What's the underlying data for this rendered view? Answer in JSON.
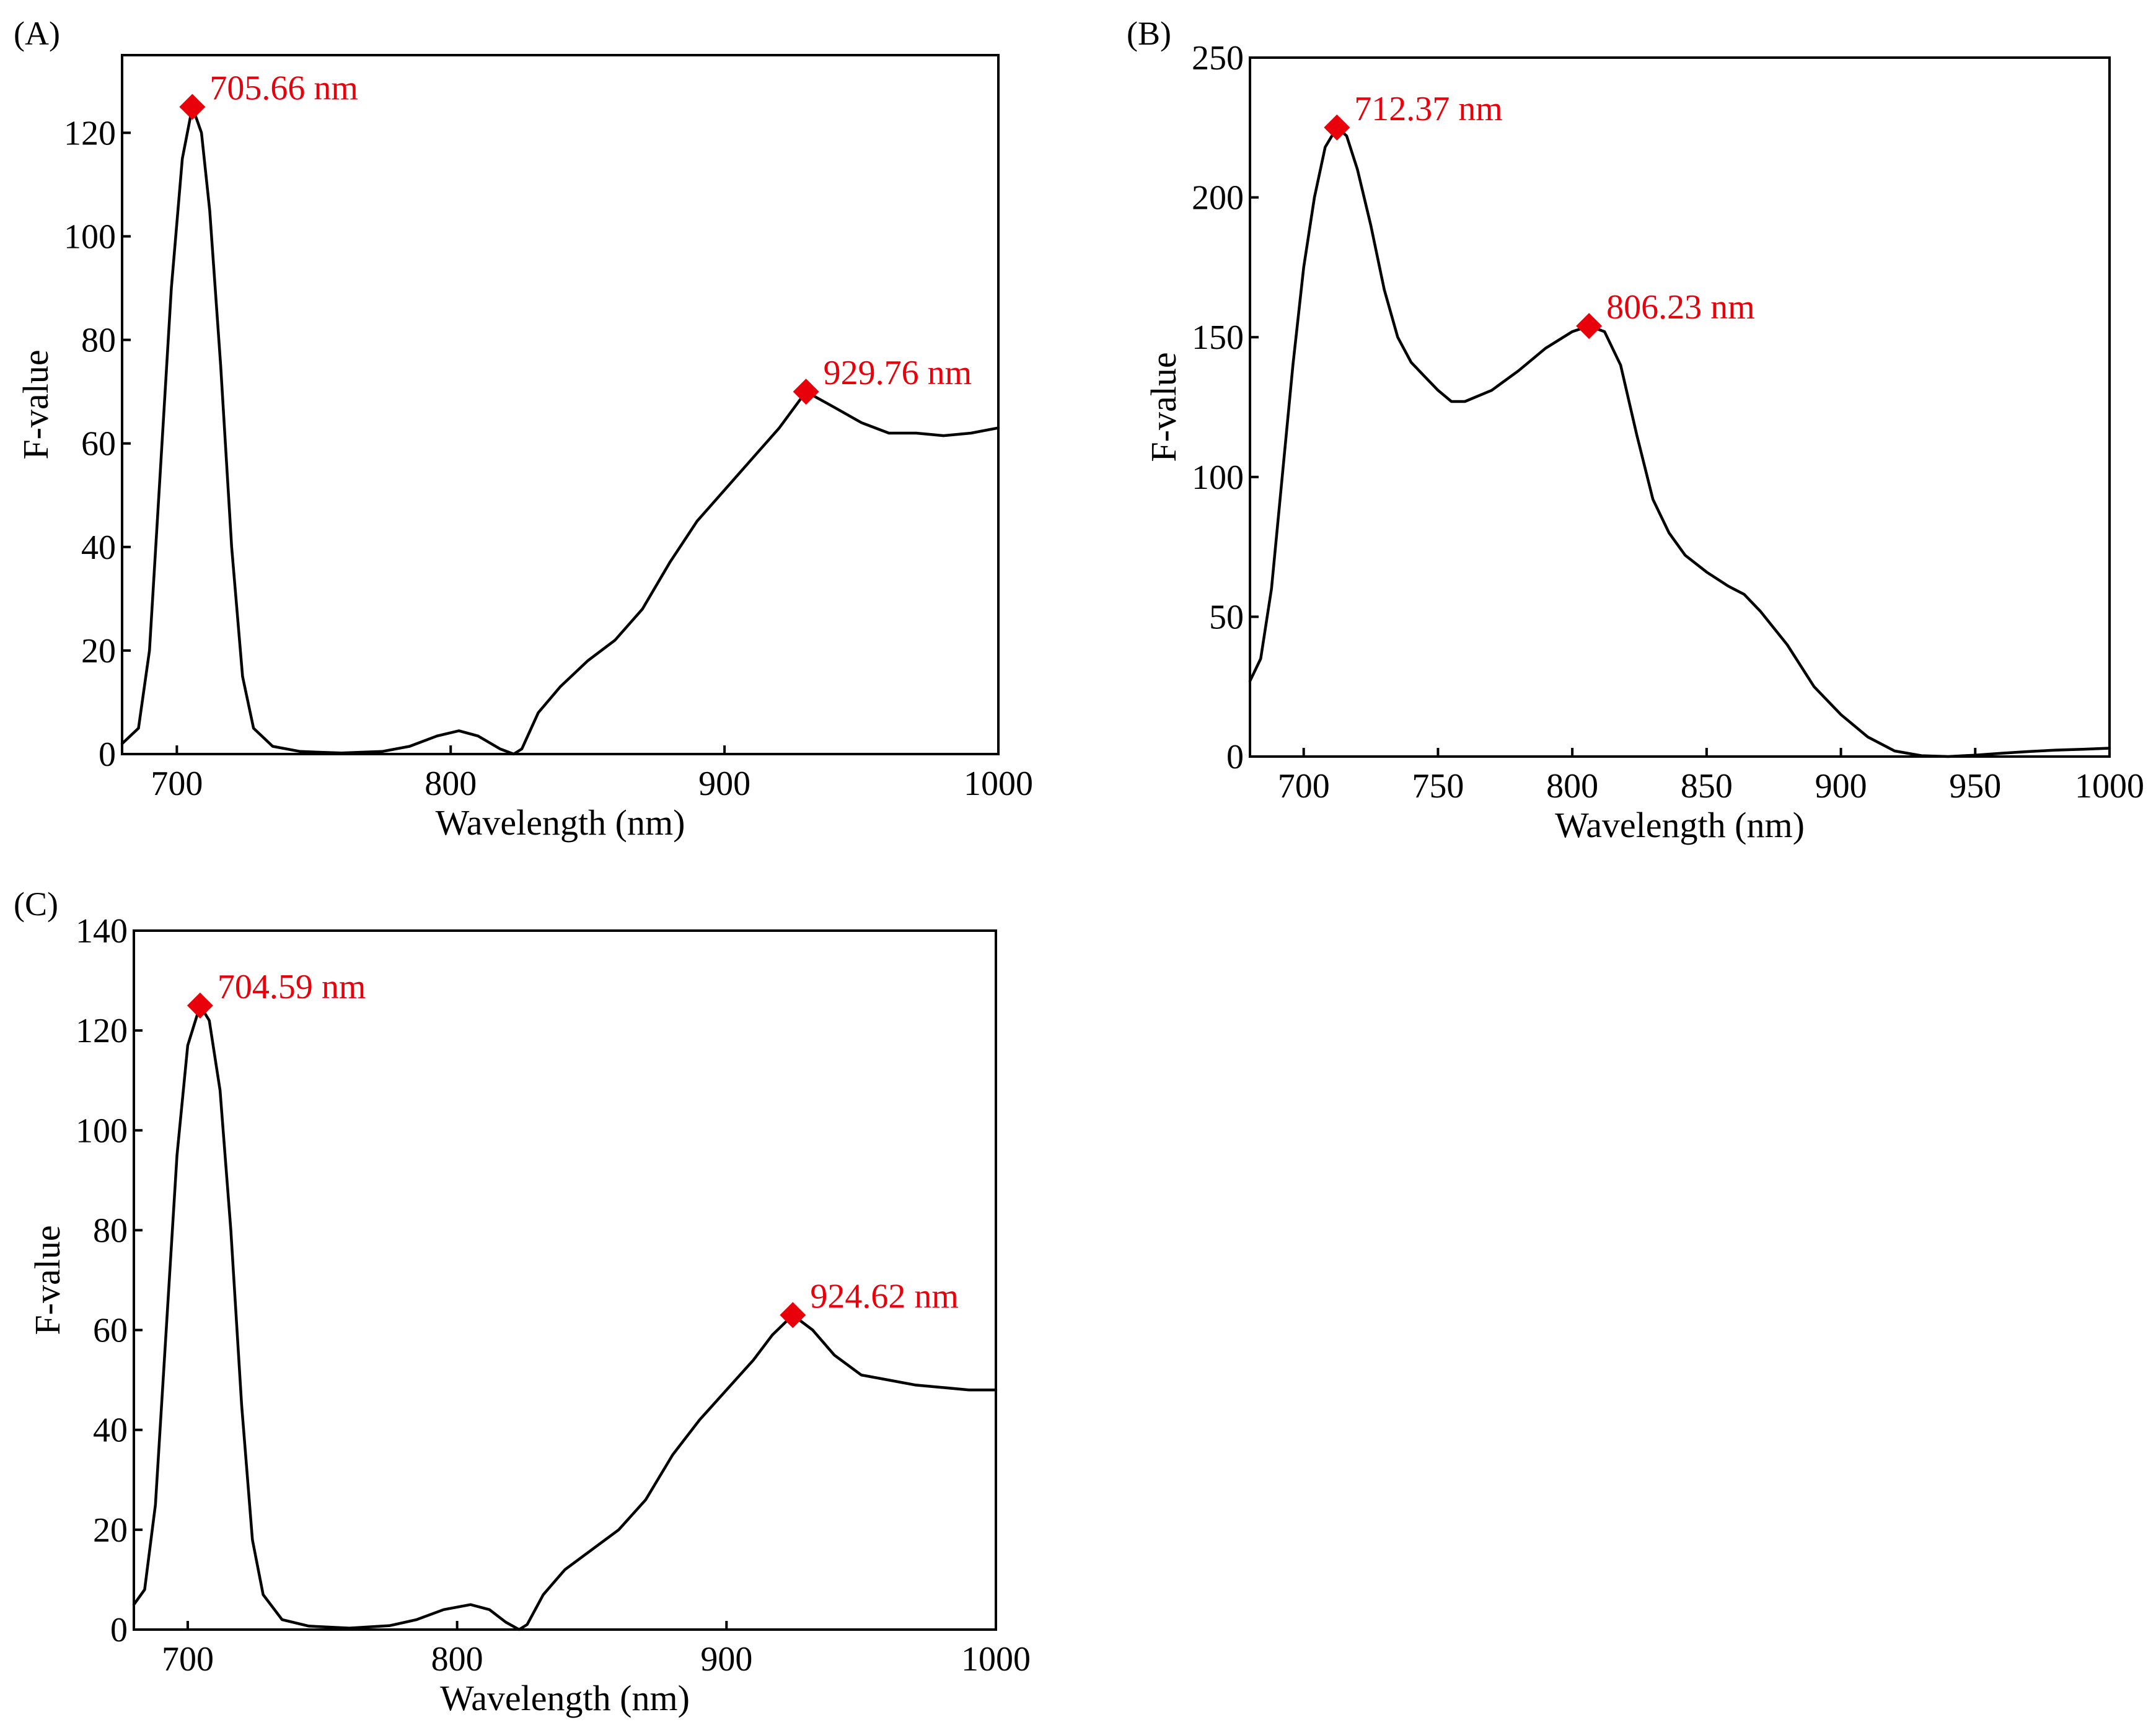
{
  "figure": {
    "panel_count": 3
  },
  "chart_data": [
    {
      "type": "line",
      "panel_label": "(A)",
      "xlabel": "Wavelength (nm)",
      "ylabel": "F-value",
      "xlim": [
        680,
        1000
      ],
      "ylim": [
        0,
        135
      ],
      "xticks": [
        700,
        800,
        900,
        1000
      ],
      "yticks": [
        0,
        20,
        40,
        60,
        80,
        100,
        120
      ],
      "series": [
        {
          "name": "F-value",
          "points": [
            [
              680,
              2
            ],
            [
              686,
              5
            ],
            [
              690,
              20
            ],
            [
              694,
              55
            ],
            [
              698,
              90
            ],
            [
              702,
              115
            ],
            [
              705.66,
              125
            ],
            [
              709,
              120
            ],
            [
              712,
              105
            ],
            [
              716,
              75
            ],
            [
              720,
              40
            ],
            [
              724,
              15
            ],
            [
              728,
              5
            ],
            [
              735,
              1.5
            ],
            [
              745,
              0.5
            ],
            [
              760,
              0.2
            ],
            [
              775,
              0.5
            ],
            [
              785,
              1.5
            ],
            [
              795,
              3.5
            ],
            [
              803,
              4.5
            ],
            [
              810,
              3.5
            ],
            [
              818,
              1
            ],
            [
              823,
              0
            ],
            [
              826,
              1
            ],
            [
              832,
              8
            ],
            [
              840,
              13
            ],
            [
              850,
              18
            ],
            [
              860,
              22
            ],
            [
              870,
              28
            ],
            [
              880,
              37
            ],
            [
              890,
              45
            ],
            [
              900,
              51
            ],
            [
              910,
              57
            ],
            [
              920,
              63
            ],
            [
              929.76,
              70
            ],
            [
              940,
              67
            ],
            [
              950,
              64
            ],
            [
              960,
              62
            ],
            [
              970,
              62
            ],
            [
              980,
              61.5
            ],
            [
              990,
              62
            ],
            [
              1000,
              63
            ]
          ]
        }
      ],
      "peaks": [
        {
          "x": 705.66,
          "y": 125,
          "label": "705.66 nm"
        },
        {
          "x": 929.76,
          "y": 70,
          "label": "929.76 nm"
        }
      ]
    },
    {
      "type": "line",
      "panel_label": "(B)",
      "xlabel": "Wavelength (nm)",
      "ylabel": "F-value",
      "xlim": [
        680,
        1000
      ],
      "ylim": [
        0,
        250
      ],
      "xticks": [
        700,
        750,
        800,
        850,
        900,
        950,
        1000
      ],
      "yticks": [
        0,
        50,
        100,
        150,
        200,
        250
      ],
      "series": [
        {
          "name": "F-value",
          "points": [
            [
              680,
              27
            ],
            [
              684,
              35
            ],
            [
              688,
              60
            ],
            [
              692,
              100
            ],
            [
              696,
              140
            ],
            [
              700,
              175
            ],
            [
              704,
              200
            ],
            [
              708,
              218
            ],
            [
              712.37,
              225
            ],
            [
              716,
              222
            ],
            [
              720,
              210
            ],
            [
              725,
              190
            ],
            [
              730,
              167
            ],
            [
              735,
              150
            ],
            [
              740,
              141
            ],
            [
              745,
              136
            ],
            [
              750,
              131
            ],
            [
              755,
              127
            ],
            [
              760,
              127
            ],
            [
              770,
              131
            ],
            [
              780,
              138
            ],
            [
              790,
              146
            ],
            [
              800,
              152
            ],
            [
              806.23,
              154
            ],
            [
              812,
              152
            ],
            [
              818,
              140
            ],
            [
              824,
              115
            ],
            [
              830,
              92
            ],
            [
              836,
              80
            ],
            [
              842,
              72
            ],
            [
              850,
              66
            ],
            [
              858,
              61
            ],
            [
              864,
              58
            ],
            [
              870,
              52
            ],
            [
              880,
              40
            ],
            [
              890,
              25
            ],
            [
              900,
              15
            ],
            [
              910,
              7
            ],
            [
              920,
              2
            ],
            [
              930,
              0.3
            ],
            [
              940,
              0
            ],
            [
              950,
              0.5
            ],
            [
              960,
              1.2
            ],
            [
              970,
              1.8
            ],
            [
              980,
              2.3
            ],
            [
              990,
              2.6
            ],
            [
              1000,
              3
            ]
          ]
        }
      ],
      "peaks": [
        {
          "x": 712.37,
          "y": 225,
          "label": "712.37 nm"
        },
        {
          "x": 806.23,
          "y": 154,
          "label": "806.23 nm"
        }
      ]
    },
    {
      "type": "line",
      "panel_label": "(C)",
      "xlabel": "Wavelength (nm)",
      "ylabel": "F-value",
      "xlim": [
        680,
        1000
      ],
      "ylim": [
        0,
        140
      ],
      "xticks": [
        700,
        800,
        900,
        1000
      ],
      "yticks": [
        0,
        20,
        40,
        60,
        80,
        100,
        120,
        140
      ],
      "series": [
        {
          "name": "F-value",
          "points": [
            [
              680,
              5
            ],
            [
              684,
              8
            ],
            [
              688,
              25
            ],
            [
              692,
              60
            ],
            [
              696,
              95
            ],
            [
              700,
              117
            ],
            [
              704.59,
              125
            ],
            [
              708,
              122
            ],
            [
              712,
              108
            ],
            [
              716,
              80
            ],
            [
              720,
              45
            ],
            [
              724,
              18
            ],
            [
              728,
              7
            ],
            [
              735,
              2
            ],
            [
              745,
              0.7
            ],
            [
              760,
              0.3
            ],
            [
              775,
              0.8
            ],
            [
              785,
              2
            ],
            [
              795,
              4
            ],
            [
              805,
              5
            ],
            [
              812,
              4
            ],
            [
              818,
              1.5
            ],
            [
              823,
              0
            ],
            [
              826,
              1
            ],
            [
              832,
              7
            ],
            [
              840,
              12
            ],
            [
              850,
              16
            ],
            [
              860,
              20
            ],
            [
              870,
              26
            ],
            [
              880,
              35
            ],
            [
              890,
              42
            ],
            [
              900,
              48
            ],
            [
              910,
              54
            ],
            [
              917,
              59
            ],
            [
              924.62,
              63
            ],
            [
              932,
              60
            ],
            [
              940,
              55
            ],
            [
              950,
              51
            ],
            [
              960,
              50
            ],
            [
              970,
              49
            ],
            [
              980,
              48.5
            ],
            [
              990,
              48
            ],
            [
              1000,
              48
            ]
          ]
        }
      ],
      "peaks": [
        {
          "x": 704.59,
          "y": 125,
          "label": "704.59 nm"
        },
        {
          "x": 924.62,
          "y": 63,
          "label": "924.62 nm"
        }
      ]
    }
  ]
}
